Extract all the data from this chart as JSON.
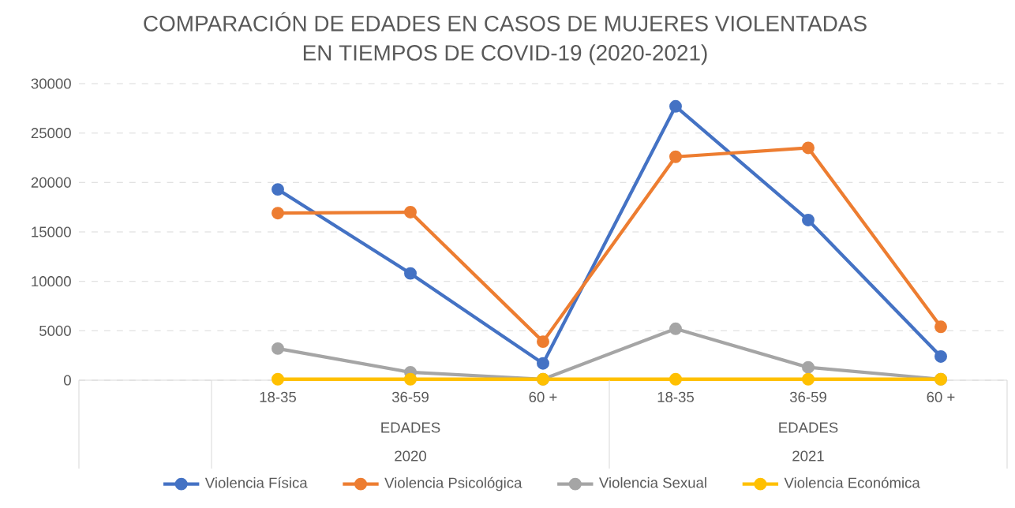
{
  "chart_data": {
    "type": "line",
    "title": "COMPARACIÓN DE EDADES EN CASOS DE MUJERES VIOLENTADAS\nEN TIEMPOS DE COVID-19 (2020-2021)",
    "categories": [
      null,
      "18-35",
      "36-59",
      "60 +",
      "18-35",
      "36-59",
      "60 +"
    ],
    "series": [
      {
        "name": "Violencia Física",
        "color": "#4472c4",
        "values": [
          null,
          19300,
          10800,
          1700,
          27700,
          16200,
          2400
        ]
      },
      {
        "name": "Violencia Psicológica",
        "color": "#ed7d31",
        "values": [
          null,
          16900,
          17000,
          3900,
          22600,
          23500,
          5400
        ]
      },
      {
        "name": "Violencia Sexual",
        "color": "#a5a5a5",
        "values": [
          null,
          3200,
          800,
          100,
          5200,
          1300,
          100
        ]
      },
      {
        "name": "Violencia Económica",
        "color": "#ffc000",
        "values": [
          null,
          100,
          100,
          100,
          100,
          100,
          100
        ]
      }
    ],
    "annotations": [
      "EDADES",
      "2020",
      "EDADES",
      "2021"
    ],
    "ylim": [
      0,
      30000
    ],
    "yticks": [
      0,
      5000,
      10000,
      15000,
      20000,
      25000,
      30000
    ],
    "grid": "y",
    "legend": "bottom",
    "marker": "circle",
    "line_style": "solid"
  }
}
